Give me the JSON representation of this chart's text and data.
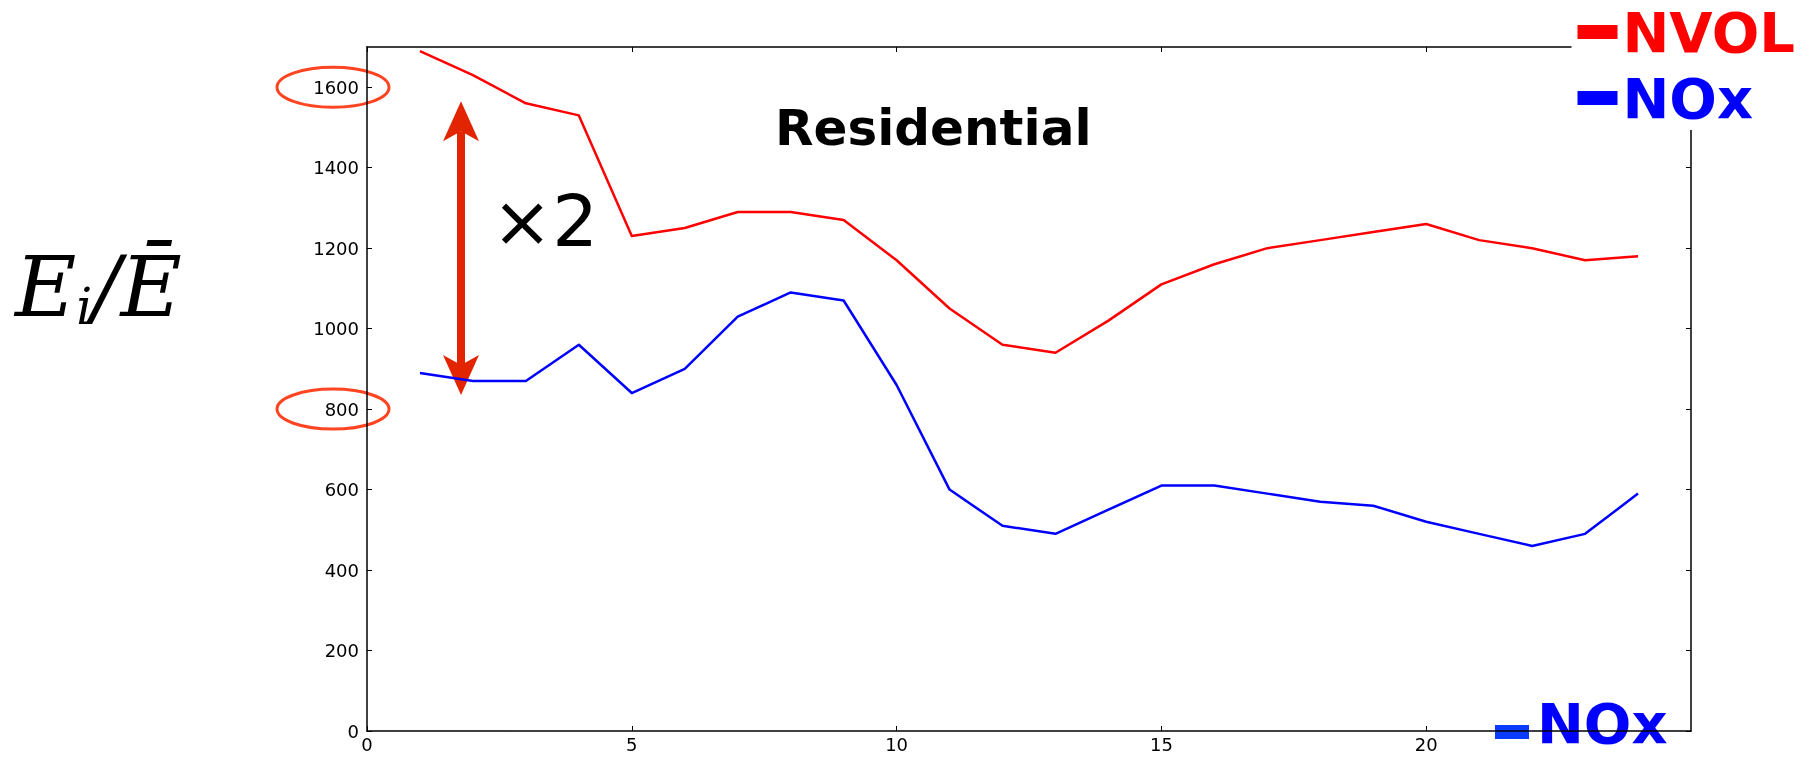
{
  "chart_data": {
    "type": "line",
    "title": "Residential",
    "ylabel": "E$_{i}$/Ē",
    "x": [
      1,
      2,
      3,
      4,
      5,
      6,
      7,
      8,
      9,
      10,
      11,
      12,
      13,
      14,
      15,
      16,
      17,
      18,
      19,
      20,
      21,
      22,
      23,
      24
    ],
    "series": [
      {
        "name": "NVOL",
        "color": "#ff0000",
        "values": [
          1690,
          1630,
          1560,
          1530,
          1230,
          1250,
          1290,
          1290,
          1270,
          1170,
          1050,
          960,
          940,
          1020,
          1110,
          1160,
          1200,
          1220,
          1240,
          1260,
          1220,
          1200,
          1170,
          1180
        ]
      },
      {
        "name": "NOx",
        "color": "#0000ff",
        "values": [
          890,
          870,
          870,
          960,
          840,
          900,
          1030,
          1090,
          1070,
          860,
          600,
          510,
          490,
          550,
          610,
          610,
          590,
          570,
          560,
          520,
          490,
          460,
          490,
          590
        ]
      }
    ],
    "xlim": [
      0,
      25
    ],
    "xticks": [
      0,
      5,
      10,
      15,
      20
    ],
    "ylim": [
      0,
      1700
    ],
    "yticks": [
      0,
      200,
      400,
      600,
      {
        "value": 800,
        "label": "800"
      },
      1000,
      1200,
      1400,
      {
        "value": 1600,
        "label": "1600"
      }
    ],
    "annotations": [
      "×2",
      "NOx"
    ],
    "legend": "top right",
    "grid": false,
    "marker": "none",
    "line_style": "solid"
  }
}
